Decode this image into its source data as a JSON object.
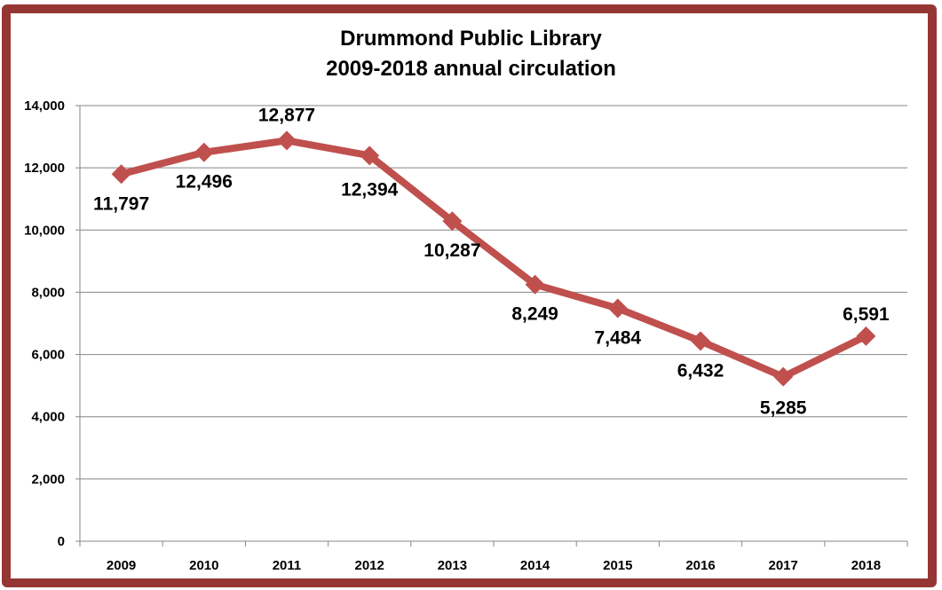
{
  "chart_data": {
    "type": "line",
    "title": "Drummond Public Library",
    "subtitle": "2009-2018 annual circulation",
    "xlabel": "",
    "ylabel": "",
    "categories": [
      "2009",
      "2010",
      "2011",
      "2012",
      "2013",
      "2014",
      "2015",
      "2016",
      "2017",
      "2018"
    ],
    "series": [
      {
        "name": "Annual circulation",
        "values": [
          11797,
          12496,
          12877,
          12394,
          10287,
          8249,
          7484,
          6432,
          5285,
          6591
        ],
        "labels": [
          "11,797",
          "12,496",
          "12,877",
          "12,394",
          "10,287",
          "8,249",
          "7,484",
          "6,432",
          "5,285",
          "6,591"
        ],
        "color": "#c0504d",
        "marker": "diamond"
      }
    ],
    "ylim": [
      0,
      14000
    ],
    "yticks": [
      0,
      2000,
      4000,
      6000,
      8000,
      10000,
      12000,
      14000
    ],
    "ytick_labels": [
      "0",
      "2,000",
      "4,000",
      "6,000",
      "8,000",
      "10,000",
      "12,000",
      "14,000"
    ],
    "grid": true,
    "legend": "none"
  },
  "frame": {
    "border_color": "#963634",
    "grid_color": "#868686"
  }
}
